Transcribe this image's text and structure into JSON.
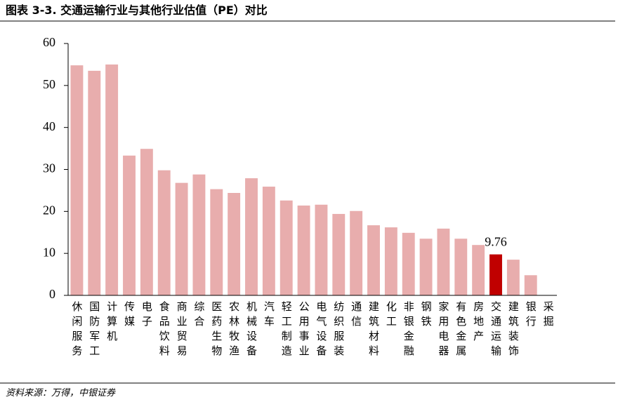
{
  "header": {
    "title": "图表 3-3. 交通运输行业与其他行业估值（PE）对比"
  },
  "chart_data": {
    "type": "bar",
    "categories": [
      "休闲服务",
      "国防军工",
      "计算机",
      "传媒",
      "电子",
      "食品饮料",
      "商业贸易",
      "综合",
      "医药生物",
      "农林牧渔",
      "机械设备",
      "汽车",
      "轻工制造",
      "公用事业",
      "电气设备",
      "纺织服装",
      "通信",
      "建筑材料",
      "化工",
      "非银金融",
      "钢铁",
      "家用电器",
      "有色金属",
      "房地产",
      "交通运输",
      "建筑装饰",
      "银行",
      "采掘"
    ],
    "values": [
      54.8,
      53.5,
      55.0,
      33.3,
      34.9,
      29.8,
      26.8,
      28.8,
      25.3,
      24.4,
      27.9,
      25.9,
      22.6,
      21.4,
      21.6,
      19.4,
      20.1,
      16.7,
      16.2,
      14.9,
      13.5,
      15.9,
      13.5,
      12.0,
      9.76,
      8.5,
      4.8,
      null
    ],
    "value_labels": [
      null,
      null,
      null,
      null,
      null,
      null,
      null,
      null,
      null,
      null,
      null,
      null,
      null,
      null,
      null,
      null,
      null,
      null,
      null,
      null,
      null,
      null,
      null,
      null,
      "9.76",
      null,
      null,
      null
    ],
    "colors": [
      "#e8adad",
      "#e8adad",
      "#e8adad",
      "#e8adad",
      "#e8adad",
      "#e8adad",
      "#e8adad",
      "#e8adad",
      "#e8adad",
      "#e8adad",
      "#e8adad",
      "#e8adad",
      "#e8adad",
      "#e8adad",
      "#e8adad",
      "#e8adad",
      "#e8adad",
      "#e8adad",
      "#e8adad",
      "#e8adad",
      "#e8adad",
      "#e8adad",
      "#e8adad",
      "#e8adad",
      "#c00000",
      "#e8adad",
      "#e8adad",
      "#e8adad"
    ],
    "ylim": [
      0,
      60
    ],
    "yticks": [
      0,
      10,
      20,
      30,
      40,
      50,
      60
    ],
    "grid": false
  },
  "footer": {
    "source": "资料来源：万得，中银证券"
  }
}
